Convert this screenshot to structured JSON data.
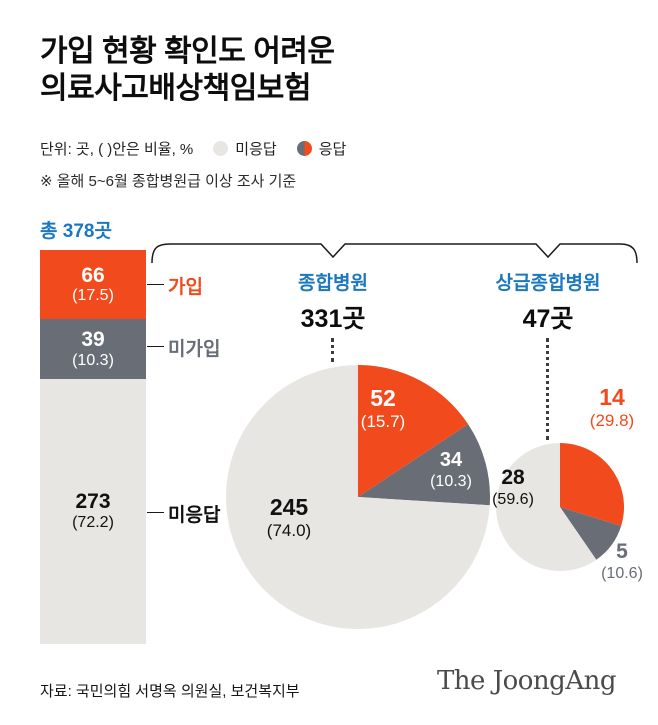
{
  "colors": {
    "orange": "#f14b1d",
    "gray": "#686d76",
    "light_gray": "#e8e6e3",
    "blue": "#1b78c0",
    "text_dark": "#111111",
    "white": "#ffffff"
  },
  "header": {
    "title_line1": "가입 현황 확인도 어려운",
    "title_line2": "의료사고배상책임보험",
    "unit_note": "단위: 곳, ( )안은 비율, %",
    "legend": [
      {
        "label": "미응답"
      },
      {
        "label": "응답"
      }
    ],
    "survey_note": "※ 올해 5~6월 종합병원급 이상 조사 기준"
  },
  "chart_data": [
    {
      "type": "bar",
      "title": "총 378곳",
      "total": 378,
      "categories": [
        "가입",
        "미가입",
        "미응답"
      ],
      "display_heights_pct": [
        17.5,
        15.2,
        67.3
      ],
      "segments": [
        {
          "name": "가입",
          "value": 66,
          "pct": 17.5,
          "value_label": "66",
          "pct_label": "(17.5)",
          "color_key": "orange",
          "text_color": "#ffffff"
        },
        {
          "name": "미가입",
          "value": 39,
          "pct": 10.3,
          "value_label": "39",
          "pct_label": "(10.3)",
          "color_key": "gray",
          "text_color": "#ffffff"
        },
        {
          "name": "미응답",
          "value": 273,
          "pct": 72.2,
          "value_label": "273",
          "pct_label": "(72.2)",
          "color_key": "light_gray",
          "text_color": "#111111"
        }
      ]
    },
    {
      "type": "pie",
      "title": "종합병원",
      "subtitle": "331곳",
      "total": 331,
      "slices": [
        {
          "name": "가입",
          "value": 52,
          "pct": 15.7,
          "value_label": "52",
          "pct_label": "(15.7)",
          "color_key": "orange"
        },
        {
          "name": "미가입",
          "value": 34,
          "pct": 10.3,
          "value_label": "34",
          "pct_label": "(10.3)",
          "color_key": "gray"
        },
        {
          "name": "미응답",
          "value": 245,
          "pct": 74.0,
          "value_label": "245",
          "pct_label": "(74.0)",
          "color_key": "light_gray"
        }
      ]
    },
    {
      "type": "pie",
      "title": "상급종합병원",
      "subtitle": "47곳",
      "total": 47,
      "slices": [
        {
          "name": "가입",
          "value": 14,
          "pct": 29.8,
          "value_label": "14",
          "pct_label": "(29.8)",
          "color_key": "orange"
        },
        {
          "name": "미가입",
          "value": 5,
          "pct": 10.6,
          "value_label": "5",
          "pct_label": "(10.6)",
          "color_key": "gray"
        },
        {
          "name": "미응답",
          "value": 28,
          "pct": 59.6,
          "value_label": "28",
          "pct_label": "(59.6)",
          "color_key": "light_gray"
        }
      ]
    }
  ],
  "footer": {
    "source": "자료: 국민의힘 서명옥 의원실, 보건복지부",
    "logo": "The JoongAng"
  }
}
